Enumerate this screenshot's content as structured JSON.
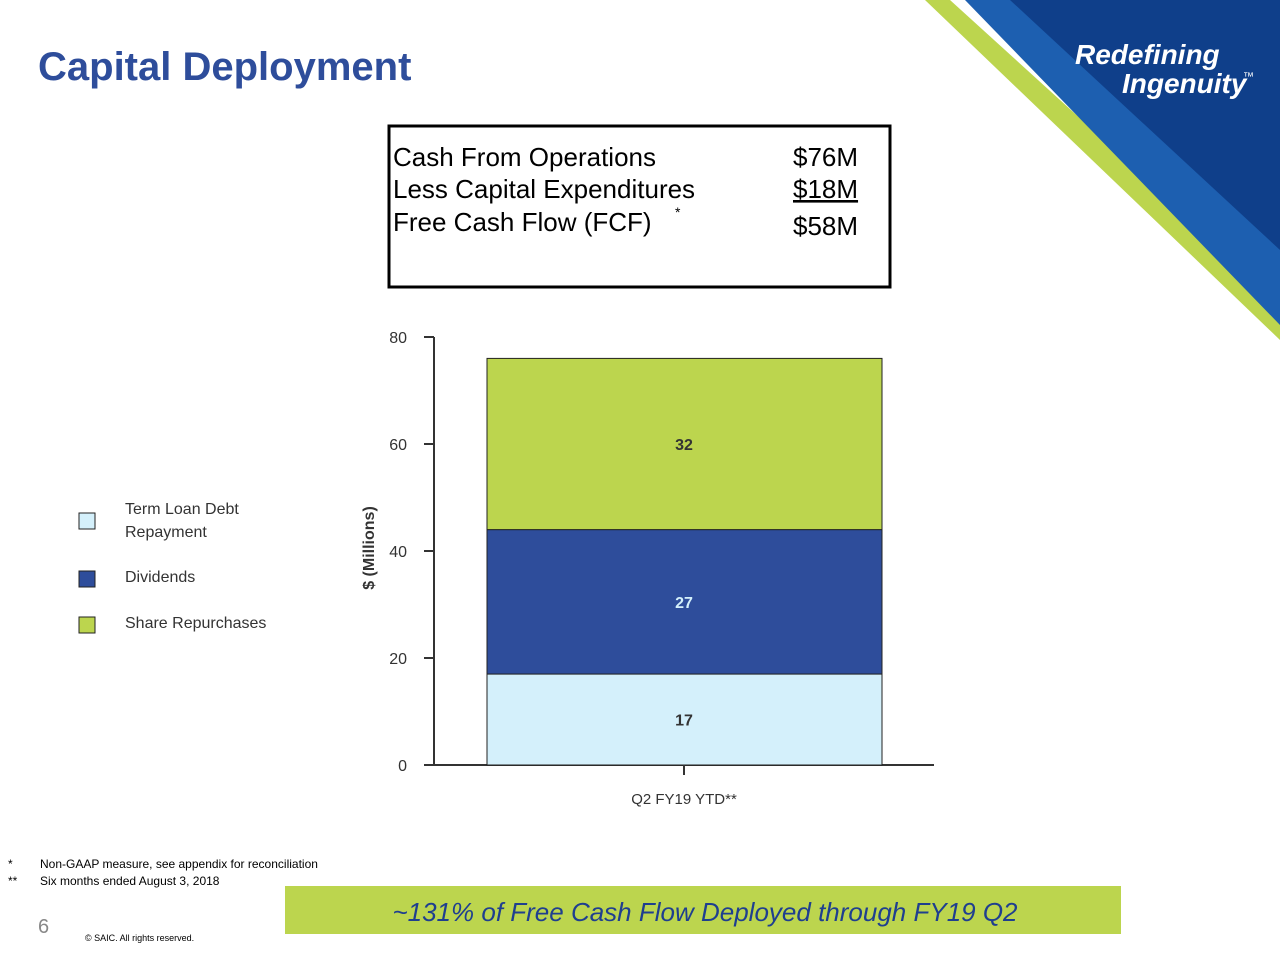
{
  "title": "Capital Deployment",
  "logo": {
    "line1": "Redefining",
    "line2": "Ingenuity",
    "tm": "™"
  },
  "summary": {
    "rows": [
      {
        "label": "Cash From Operations",
        "value": "$76M"
      },
      {
        "label": "Less Capital Expenditures",
        "value": "$18M"
      },
      {
        "label": "Free Cash Flow (FCF)",
        "mark": "*",
        "value": "$58M"
      }
    ]
  },
  "chart_data": {
    "type": "stacked_bar",
    "categories": [
      "Q2 FY19 YTD**"
    ],
    "series": [
      {
        "name": "Term Loan Debt Repayment",
        "color": "#d4f0fb",
        "values": [
          17
        ]
      },
      {
        "name": "Dividends",
        "color": "#2e4d9b",
        "values": [
          27
        ]
      },
      {
        "name": "Share Repurchases",
        "color": "#bcd54e",
        "values": [
          32
        ]
      }
    ],
    "y_label": "$ (Millions)",
    "ylim": [
      0,
      80
    ],
    "yticks": [
      0,
      20,
      40,
      60,
      80
    ]
  },
  "footnotes": [
    {
      "mark": "*",
      "text": "Non-GAAP measure, see appendix for reconciliation"
    },
    {
      "mark": "**",
      "text": "Six months ended August 3, 2018"
    }
  ],
  "banner": "~131% of Free Cash Flow Deployed through FY19 Q2",
  "page_number": 6,
  "copyright": "© SAIC. All rights reserved."
}
